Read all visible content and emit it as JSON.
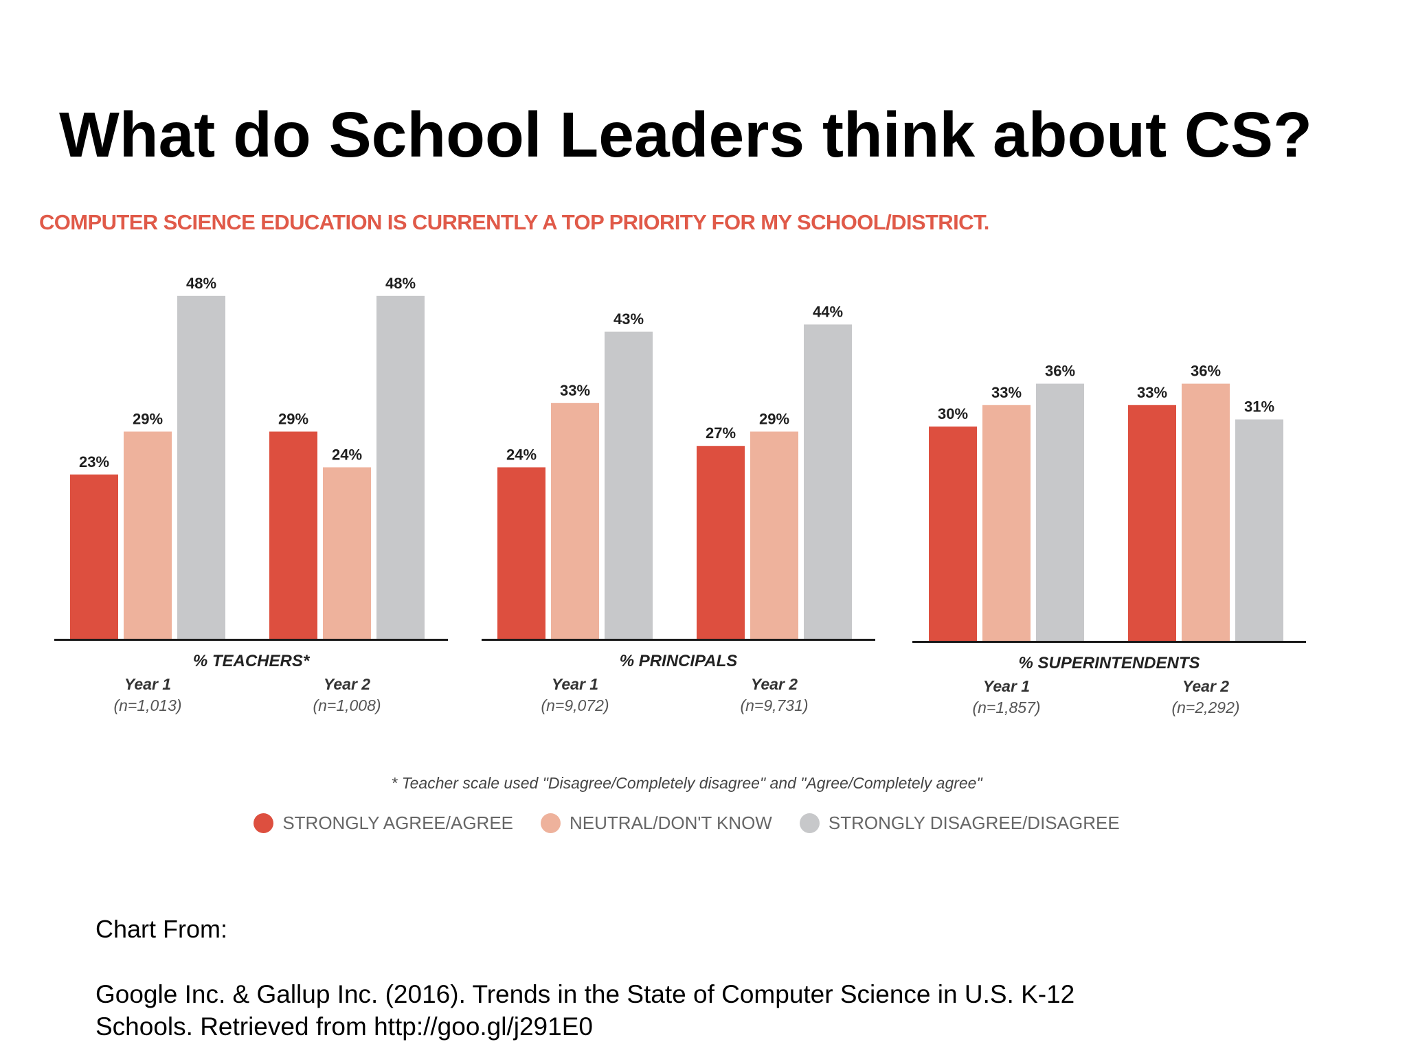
{
  "slide": {
    "title": "What do School Leaders think about CS?",
    "source_heading": "Chart From:",
    "source_line_1": " Google Inc. & Gallup Inc. (2016). Trends in the State of Computer Science in U.S. K-12",
    "source_line_2": "Schools. Retrieved from http://goo.gl/j291E0"
  },
  "chart_data": {
    "type": "bar",
    "title": "COMPUTER SCIENCE EDUCATION IS CURRENTLY A TOP PRIORITY FOR MY SCHOOL/DISTRICT.",
    "series": [
      {
        "name": "STRONGLY AGREE/AGREE",
        "color": "#dd4f3f"
      },
      {
        "name": "NEUTRAL/DON'T KNOW",
        "color": "#eeb29c"
      },
      {
        "name": "STRONGLY DISAGREE/DISAGREE",
        "color": "#c7c8ca"
      }
    ],
    "panels": [
      {
        "label": "% TEACHERS*",
        "groups": [
          {
            "year": "Year 1",
            "n": "(n=1,013)",
            "values": [
              23,
              29,
              48
            ],
            "labels": [
              "23%",
              "29%",
              "48%"
            ]
          },
          {
            "year": "Year 2",
            "n": "(n=1,008)",
            "values": [
              29,
              24,
              48
            ],
            "labels": [
              "29%",
              "24%",
              "48%"
            ]
          }
        ]
      },
      {
        "label": "% PRINCIPALS",
        "groups": [
          {
            "year": "Year 1",
            "n": "(n=9,072)",
            "values": [
              24,
              33,
              43
            ],
            "labels": [
              "24%",
              "33%",
              "43%"
            ]
          },
          {
            "year": "Year 2",
            "n": "(n=9,731)",
            "values": [
              27,
              29,
              44
            ],
            "labels": [
              "27%",
              "29%",
              "44%"
            ]
          }
        ]
      },
      {
        "label": "% SUPERINTENDENTS",
        "groups": [
          {
            "year": "Year 1",
            "n": "(n=1,857)",
            "values": [
              30,
              33,
              36
            ],
            "labels": [
              "30%",
              "33%",
              "36%"
            ]
          },
          {
            "year": "Year 2",
            "n": "(n=2,292)",
            "values": [
              33,
              36,
              31
            ],
            "labels": [
              "33%",
              "36%",
              "31%"
            ]
          }
        ]
      }
    ],
    "footnote": "* Teacher scale used \"Disagree/Completely disagree\" and \"Agree/Completely agree\"",
    "legend_position": "bottom",
    "grid": false
  }
}
